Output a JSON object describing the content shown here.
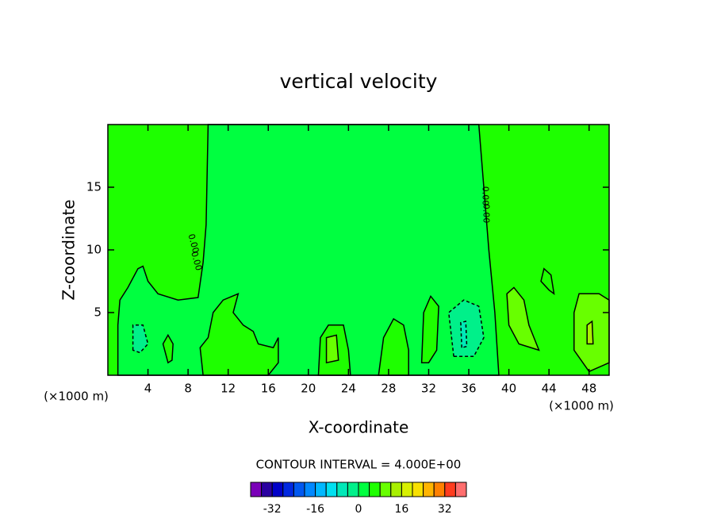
{
  "chart_data": {
    "type": "contour",
    "title": "vertical velocity",
    "xlabel": "X-coordinate",
    "ylabel": "Z-coordinate",
    "x_unit_label": "(×1000 m)",
    "xlim": [
      0,
      50
    ],
    "xticks": [
      4,
      8,
      12,
      16,
      20,
      24,
      28,
      32,
      36,
      40,
      44,
      48
    ],
    "ylim": [
      0,
      20
    ],
    "yticks": [
      5,
      10,
      15
    ],
    "contour_label": "0.00",
    "contour_interval_label": "CONTOUR INTERVAL = 4.000E+00",
    "colorbar": {
      "levels": [
        -40,
        -36,
        -32,
        -28,
        -24,
        -20,
        -16,
        -12,
        -8,
        -4,
        0,
        4,
        8,
        12,
        16,
        20,
        24,
        28,
        32,
        36,
        40
      ],
      "colors": [
        "#7a00b8",
        "#2a00a0",
        "#0000c8",
        "#0028e0",
        "#0058f0",
        "#0088ff",
        "#00b8ff",
        "#00e0f0",
        "#00e8b8",
        "#00f08a",
        "#00ff40",
        "#1eff00",
        "#68ff00",
        "#a8f000",
        "#d8f000",
        "#f8e000",
        "#ffb400",
        "#ff8000",
        "#ff3c1e",
        "#ff6e6e",
        "#ffa0a0"
      ],
      "ticks": [
        -32,
        -16,
        0,
        16,
        32
      ]
    }
  }
}
